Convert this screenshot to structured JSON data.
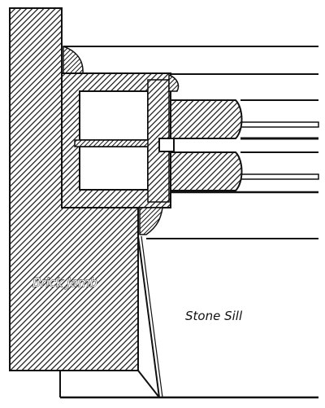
{
  "labels": {
    "brick_jamb": "Brick Jamb",
    "stone_sill": "Stone Sill"
  },
  "colors": {
    "ink": "#111111",
    "paper": "#ffffff"
  }
}
